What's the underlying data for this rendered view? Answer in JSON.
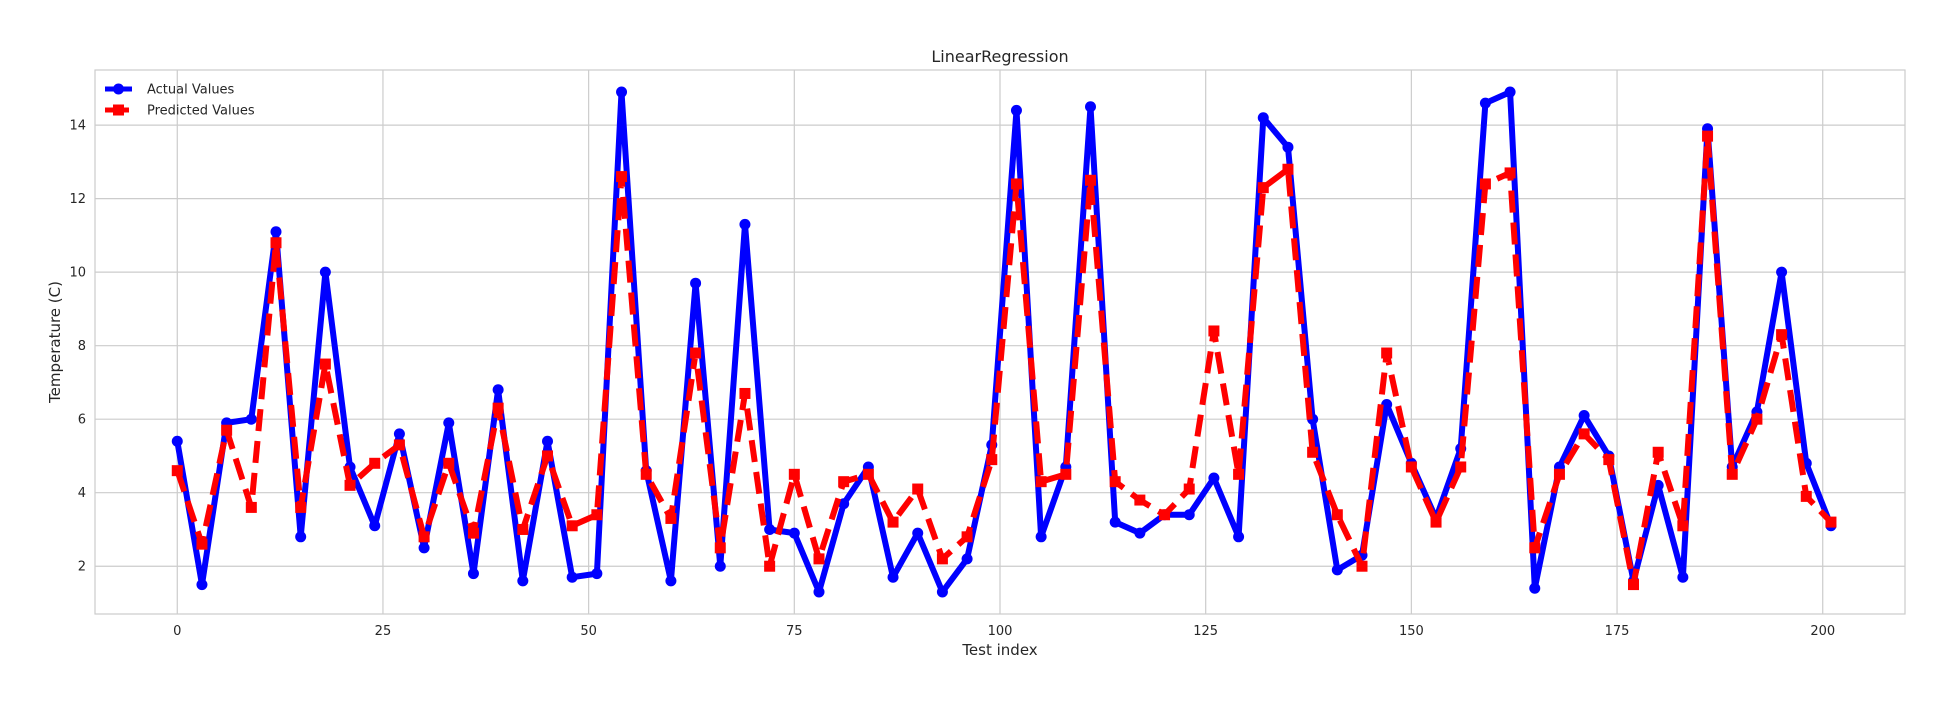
{
  "chart_data": {
    "type": "line",
    "title": "LinearRegression",
    "xlabel": "Test index",
    "ylabel": "Temperature (C)",
    "xlim": [
      -10,
      210
    ],
    "ylim": [
      0.7,
      15.5
    ],
    "xticks": [
      0,
      25,
      50,
      75,
      100,
      125,
      150,
      175,
      200
    ],
    "yticks": [
      2,
      4,
      6,
      8,
      10,
      12,
      14
    ],
    "grid": true,
    "legend_position": "top-left",
    "x": [
      0,
      3,
      6,
      9,
      12,
      15,
      18,
      21,
      24,
      27,
      30,
      33,
      36,
      39,
      42,
      45,
      48,
      51,
      54,
      57,
      60,
      63,
      66,
      69,
      72,
      75,
      78,
      81,
      84,
      87,
      90,
      93,
      96,
      99,
      102,
      105,
      108,
      111,
      114,
      117,
      120,
      123,
      126,
      129,
      132,
      135,
      138,
      141,
      144,
      147,
      150,
      153,
      156,
      159,
      162,
      165,
      168,
      171,
      174,
      177,
      180,
      183,
      186,
      189,
      192,
      195,
      198,
      201
    ],
    "series": [
      {
        "name": "Actual Values",
        "color": "#0000ff",
        "style": "solid",
        "marker": "circle",
        "values": [
          5.4,
          1.5,
          5.9,
          6.0,
          11.1,
          2.8,
          10.0,
          4.7,
          3.1,
          5.6,
          2.5,
          5.9,
          1.8,
          6.8,
          1.6,
          5.4,
          1.7,
          1.8,
          14.9,
          4.6,
          1.6,
          9.7,
          2.0,
          11.3,
          3.0,
          2.9,
          1.3,
          3.7,
          4.7,
          1.7,
          2.9,
          1.3,
          2.2,
          5.3,
          14.4,
          2.8,
          4.7,
          14.5,
          3.2,
          2.9,
          3.4,
          3.4,
          4.4,
          2.8,
          14.2,
          13.4,
          6.0,
          1.9,
          2.3,
          6.4,
          4.8,
          3.3,
          5.2,
          14.6,
          14.9,
          1.4,
          4.7,
          6.1,
          5.0,
          1.6,
          4.2,
          1.7,
          13.9,
          4.7,
          6.2,
          10.0,
          4.8,
          3.1
        ]
      },
      {
        "name": "Predicted Values",
        "color": "#ff0000",
        "style": "dashed",
        "marker": "square",
        "values": [
          4.6,
          2.6,
          5.7,
          3.6,
          10.8,
          3.6,
          7.5,
          4.2,
          4.8,
          5.3,
          2.8,
          4.8,
          2.9,
          6.3,
          3.0,
          5.0,
          3.1,
          3.4,
          12.6,
          4.5,
          3.3,
          7.8,
          2.5,
          6.7,
          2.0,
          4.5,
          2.2,
          4.3,
          4.5,
          3.2,
          4.1,
          2.2,
          2.8,
          4.9,
          12.4,
          4.3,
          4.5,
          12.5,
          4.3,
          3.8,
          3.4,
          4.1,
          8.4,
          4.5,
          12.3,
          12.8,
          5.1,
          3.4,
          2.0,
          7.8,
          4.7,
          3.2,
          4.7,
          12.4,
          12.7,
          2.5,
          4.5,
          5.6,
          4.9,
          1.5,
          5.1,
          3.1,
          13.7,
          4.5,
          6.0,
          8.3,
          3.9,
          3.2
        ]
      }
    ]
  }
}
